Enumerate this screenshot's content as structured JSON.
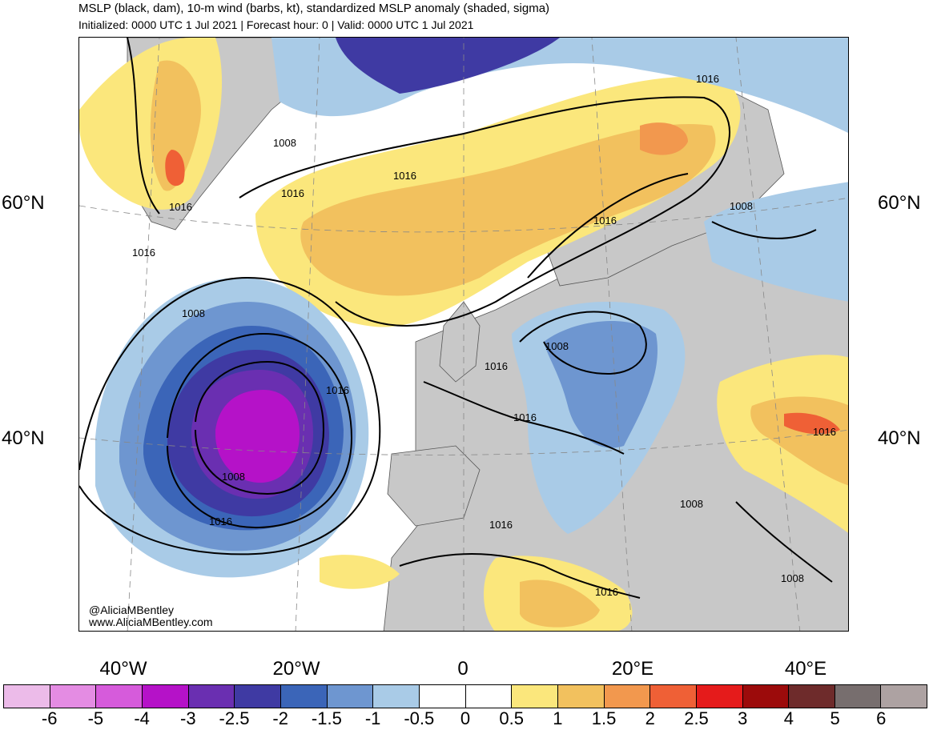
{
  "title": "MSLP (black, dam), 10-m wind (barbs, kt), standardized MSLP anomaly (shaded, sigma)",
  "subtitle": "Initialized: 0000 UTC 1 Jul 2021 | Forecast hour: 0 | Valid: 0000 UTC 1 Jul 2021",
  "lat_labels": {
    "n60_left": "60°N",
    "n60_right": "60°N",
    "n40_left": "40°N",
    "n40_right": "40°N"
  },
  "lon_labels": {
    "w40": "40°W",
    "w20": "20°W",
    "zero": "0",
    "e20": "20°E",
    "e40": "40°E"
  },
  "isobar_labels": {
    "l1008_greenland_south": "1008",
    "l1016_greenland": "1016",
    "l1016_labrador": "1016",
    "l1016_iceland": "1016",
    "l1016_north_atlantic": "1016",
    "l1016_scandinavia_n": "1016",
    "l1016_sweden": "1016",
    "l1008_finland": "1008",
    "l1008_low_outer": "1008",
    "l1016_low_east": "1016",
    "l1008_low_center": "1008",
    "l1016_low_south": "1016",
    "l1008_baltic": "1008",
    "l1016_france": "1016",
    "l1016_italy": "1016",
    "l1016_med": "1016",
    "l1008_aegean": "1008",
    "l1016_turkey": "1016",
    "l1016_africa": "1016",
    "l1008_middle_east": "1008"
  },
  "credits": {
    "handle": "@AliciaMBentley",
    "website": "www.AliciaMBentley.com"
  },
  "colorbar": {
    "labels": [
      "-6",
      "-5",
      "-4",
      "-3",
      "-2.5",
      "-2",
      "-1.5",
      "-1",
      "-0.5",
      "0",
      "0.5",
      "1",
      "1.5",
      "2",
      "2.5",
      "3",
      "4",
      "5",
      "6"
    ],
    "colors": [
      "#ecbbe9",
      "#e48ce3",
      "#d65bdb",
      "#b512c8",
      "#6a2fb1",
      "#3f3aa3",
      "#3b65b8",
      "#6e96d0",
      "#a9cbe7",
      "#ffffff",
      "#ffffff",
      "#fbe77c",
      "#f2c15e",
      "#f2984e",
      "#ef6036",
      "#e51b1b",
      "#9c0b0b",
      "#6e2b2b",
      "#776e6e",
      "#ada2a2"
    ]
  },
  "legend_scale": {
    "neg6": "#ecbbe9",
    "neg5": "#e48ce3",
    "neg4": "#d65bdb",
    "neg3": "#b512c8",
    "neg25": "#6a2fb1",
    "neg2": "#3f3aa3",
    "neg15": "#3b65b8",
    "neg1": "#6e96d0",
    "neg05": "#a9cbe7",
    "pos05": "#fbe77c",
    "pos1": "#f2c15e",
    "pos15": "#f2984e",
    "pos2": "#ef6036",
    "pos25": "#e51b1b",
    "land": "#c8c8c8"
  }
}
